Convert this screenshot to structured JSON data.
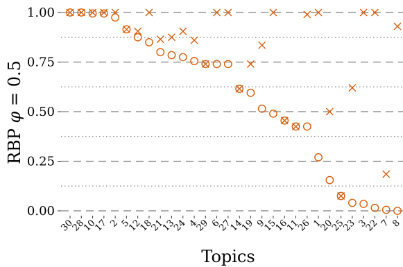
{
  "chart_data": {
    "type": "scatter",
    "xlabel": "Topics",
    "ylabel": "RBP φ = 0.5",
    "ylabel_parts": [
      "RBP ",
      "φ",
      " = 0.5"
    ],
    "ylim": [
      -0.02,
      1.02
    ],
    "yticks": [
      "0.00",
      "0.25",
      "0.50",
      "0.75",
      "1.00"
    ],
    "ytick_values": [
      0.0,
      0.25,
      0.5,
      0.75,
      1.0
    ],
    "minor_grid": [
      0.125,
      0.375,
      0.625,
      0.875
    ],
    "grid": "dashed major, dotted minor (horizontal)",
    "marker_color": "#d95f0e",
    "categories": [
      "30",
      "28",
      "10",
      "17",
      "2",
      "5",
      "12",
      "18",
      "21",
      "13",
      "24",
      "4",
      "29",
      "6",
      "27",
      "14",
      "19",
      "9",
      "15",
      "16",
      "11",
      "26",
      "1",
      "20",
      "25",
      "23",
      "3",
      "22",
      "7",
      "8"
    ],
    "series": [
      {
        "marker": "circle",
        "values": [
          1.0,
          1.0,
          0.995,
          0.995,
          0.975,
          0.915,
          0.875,
          0.85,
          0.8,
          0.785,
          0.775,
          0.755,
          0.74,
          0.74,
          0.74,
          0.615,
          0.595,
          0.515,
          0.49,
          0.455,
          0.425,
          0.425,
          0.27,
          0.155,
          0.075,
          0.04,
          0.035,
          0.015,
          0.005,
          0.0
        ]
      },
      {
        "marker": "x",
        "values": [
          1.0,
          1.0,
          1.0,
          1.0,
          1.0,
          0.915,
          0.905,
          1.0,
          0.865,
          0.875,
          0.905,
          0.86,
          0.74,
          1.0,
          1.0,
          0.615,
          0.74,
          0.835,
          1.0,
          0.455,
          0.425,
          0.99,
          1.0,
          0.5,
          0.075,
          0.62,
          1.0,
          1.0,
          0.185,
          0.93
        ]
      }
    ]
  }
}
